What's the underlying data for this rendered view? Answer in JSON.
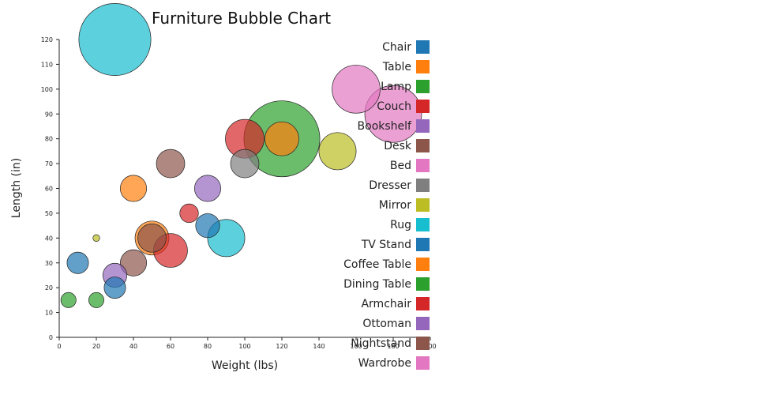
{
  "chart_data": {
    "type": "scatter",
    "subtype": "bubble",
    "title": "Furniture Bubble Chart",
    "xlabel": "Weight (lbs)",
    "ylabel": "Length (in)",
    "xlim": [
      0,
      200
    ],
    "ylim": [
      0,
      120
    ],
    "xticks": [
      "0",
      "20",
      "40",
      "60",
      "80",
      "100",
      "120",
      "140",
      "160",
      "180",
      "200"
    ],
    "yticks": [
      "0",
      "10",
      "20",
      "30",
      "40",
      "50",
      "60",
      "70",
      "80",
      "90",
      "100",
      "110",
      "120"
    ],
    "grid": false,
    "legend_position": "right",
    "series": [
      {
        "name": "Chair",
        "color": "#1f77b4",
        "points": [
          {
            "x": 10,
            "y": 30,
            "size": 4
          },
          {
            "x": 30,
            "y": 20,
            "size": 4
          },
          {
            "x": 80,
            "y": 45,
            "size": 5
          }
        ]
      },
      {
        "name": "Table",
        "color": "#ff7f0e",
        "points": [
          {
            "x": 40,
            "y": 60,
            "size": 6
          },
          {
            "x": 50,
            "y": 40,
            "size": 10
          },
          {
            "x": 120,
            "y": 80,
            "size": 10
          }
        ]
      },
      {
        "name": "Lamp",
        "color": "#2ca02c",
        "points": [
          {
            "x": 5,
            "y": 15,
            "size": 2
          },
          {
            "x": 20,
            "y": 15,
            "size": 2
          },
          {
            "x": 120,
            "y": 80,
            "size": 50
          }
        ]
      },
      {
        "name": "Couch",
        "color": "#d62728",
        "points": [
          {
            "x": 60,
            "y": 35,
            "size": 10
          },
          {
            "x": 70,
            "y": 50,
            "size": 3
          },
          {
            "x": 100,
            "y": 80,
            "size": 13
          }
        ]
      },
      {
        "name": "Bookshelf",
        "color": "#9467bd",
        "points": [
          {
            "x": 30,
            "y": 25,
            "size": 5
          },
          {
            "x": 80,
            "y": 60,
            "size": 6
          }
        ]
      },
      {
        "name": "Desk",
        "color": "#8c564b",
        "points": [
          {
            "x": 40,
            "y": 30,
            "size": 6
          },
          {
            "x": 50,
            "y": 40,
            "size": 7
          },
          {
            "x": 60,
            "y": 70,
            "size": 7
          }
        ]
      },
      {
        "name": "Bed",
        "color": "#e377c2",
        "points": [
          {
            "x": 160,
            "y": 100,
            "size": 20
          },
          {
            "x": 180,
            "y": 90,
            "size": 28
          }
        ]
      },
      {
        "name": "Dresser",
        "color": "#7f7f7f",
        "points": [
          {
            "x": 100,
            "y": 70,
            "size": 7
          }
        ]
      },
      {
        "name": "Mirror",
        "color": "#bcbd22",
        "points": [
          {
            "x": 20,
            "y": 40,
            "size": 0.4
          },
          {
            "x": 150,
            "y": 75,
            "size": 12
          }
        ]
      },
      {
        "name": "Rug",
        "color": "#17becf",
        "points": [
          {
            "x": 30,
            "y": 120,
            "size": 45
          },
          {
            "x": 90,
            "y": 40,
            "size": 12
          }
        ]
      },
      {
        "name": "TV Stand",
        "color": "#1f77b4",
        "points": []
      },
      {
        "name": "Coffee Table",
        "color": "#ff7f0e",
        "points": []
      },
      {
        "name": "Dining Table",
        "color": "#2ca02c",
        "points": []
      },
      {
        "name": "Armchair",
        "color": "#d62728",
        "points": []
      },
      {
        "name": "Ottoman",
        "color": "#9467bd",
        "points": []
      },
      {
        "name": "Nightstand",
        "color": "#8c564b",
        "points": []
      },
      {
        "name": "Wardrobe",
        "color": "#e377c2",
        "points": []
      }
    ]
  }
}
